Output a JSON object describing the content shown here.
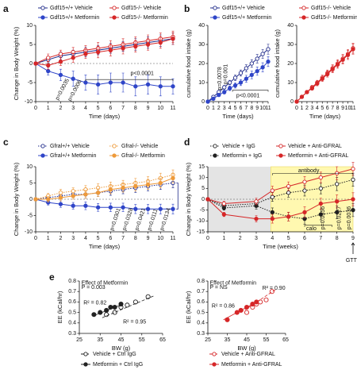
{
  "chart_data": [
    {
      "type": "line",
      "panel": "a",
      "x_label": "Time (days)",
      "y_label": "Change in Body Weight (%)",
      "x": [
        0,
        1,
        2,
        3,
        4,
        5,
        6,
        7,
        8,
        9,
        10,
        11
      ],
      "xlim": [
        0,
        11
      ],
      "xticks": [
        0,
        1,
        2,
        3,
        4,
        5,
        6,
        7,
        8,
        9,
        10,
        11
      ],
      "ylim": [
        -10,
        10
      ],
      "yticks": [
        -10,
        -5,
        0,
        5,
        10
      ],
      "zero_line": true,
      "series": [
        {
          "name": "Gdf15+/+ Vehicle",
          "color": "#1f2a8a",
          "marker": "open",
          "line_style": "solid",
          "values": [
            0,
            1,
            2,
            2.5,
            3,
            3.5,
            4,
            4.5,
            5,
            5.5,
            6,
            6.5
          ],
          "errors": [
            0,
            0.8,
            1,
            1,
            1.2,
            1.2,
            1.3,
            1.3,
            1.5,
            1.5,
            1.5,
            1.5
          ]
        },
        {
          "name": "Gdf15+/+ Metformin",
          "color": "#2f45c8",
          "marker": "filled",
          "line_style": "solid",
          "values": [
            0,
            -2,
            -3,
            -4,
            -5,
            -5.5,
            -5,
            -5,
            -6,
            -5.5,
            -6,
            -6
          ],
          "errors": [
            0,
            1,
            1.5,
            2,
            2,
            2.5,
            2.5,
            2.5,
            2.5,
            2.5,
            2.5,
            2
          ]
        },
        {
          "name": "Gdf15-/- Vehicle",
          "color": "#d62728",
          "marker": "open",
          "line_style": "solid",
          "values": [
            0,
            1.5,
            2.5,
            3,
            3.5,
            4,
            4.5,
            5,
            5.5,
            6,
            6.5,
            7
          ],
          "errors": [
            0,
            1,
            1,
            1.2,
            1.2,
            1.5,
            1.5,
            1.5,
            1.5,
            1.5,
            1.5,
            1.5
          ]
        },
        {
          "name": "Gdf15-/- Metformin",
          "color": "#d62728",
          "marker": "filled",
          "line_style": "solid",
          "values": [
            0,
            -0.5,
            0.5,
            1.5,
            2.5,
            3,
            3.5,
            4,
            4.5,
            5,
            5.5,
            6.5
          ],
          "errors": [
            0,
            1,
            1,
            1.2,
            1.2,
            1.5,
            1.5,
            1.5,
            1.5,
            1.5,
            1.5,
            1.5
          ]
        }
      ],
      "annotations": [
        "p=0.0035",
        "p=0.0006",
        "p<0.0001"
      ]
    },
    {
      "type": "line",
      "panel": "b",
      "x_label": "Time (days)",
      "y_label": "cumulative food intake (g)",
      "x": [
        0,
        1,
        2,
        3,
        4,
        5,
        6,
        7,
        8,
        9,
        10,
        11
      ],
      "xlim": [
        0,
        11
      ],
      "xticks": [
        0,
        1,
        2,
        3,
        4,
        5,
        6,
        7,
        8,
        9,
        10,
        11
      ],
      "ylim": [
        0,
        40
      ],
      "yticks": [
        0,
        10,
        20,
        30,
        40
      ],
      "series": [
        {
          "name": "Gdf15+/+ Vehicle",
          "color": "#1f2a8a",
          "marker": "open",
          "line_style": "solid",
          "values": [
            0,
            2.5,
            5,
            7.5,
            10,
            12.5,
            15,
            17.5,
            20,
            22.5,
            25,
            27.5
          ],
          "errors": [
            0,
            0.5,
            0.8,
            1,
            1.2,
            1.4,
            1.6,
            1.8,
            2,
            2.2,
            2.4,
            2.6
          ]
        },
        {
          "name": "Gdf15+/+ Metformin",
          "color": "#2f45c8",
          "marker": "filled",
          "line_style": "solid",
          "values": [
            0,
            1.5,
            3.5,
            5,
            7,
            8.5,
            10,
            12,
            14,
            16,
            18,
            21
          ],
          "errors": [
            0,
            0.5,
            0.8,
            1,
            1.2,
            1.4,
            1.6,
            1.8,
            2,
            2.2,
            2.4,
            2.6
          ]
        }
      ],
      "annotations": [
        "p=0.0078",
        "p=0.001",
        "p<0.0001"
      ]
    },
    {
      "type": "line",
      "x_label": "Time (days)",
      "y_label": "cumulative food intake (g)",
      "x": [
        0,
        1,
        2,
        3,
        4,
        5,
        6,
        7,
        8,
        9,
        10,
        11
      ],
      "xlim": [
        0,
        11
      ],
      "xticks": [
        0,
        1,
        2,
        3,
        4,
        5,
        6,
        7,
        8,
        9,
        10,
        11
      ],
      "ylim": [
        0,
        40
      ],
      "yticks": [
        0,
        10,
        20,
        30,
        40
      ],
      "series": [
        {
          "name": "Gdf15-/- Vehicle",
          "color": "#d62728",
          "marker": "open",
          "line_style": "solid",
          "values": [
            0,
            2.5,
            5,
            7.5,
            10,
            12.5,
            15,
            17.5,
            20,
            22.5,
            25,
            28
          ],
          "errors": [
            0,
            0.5,
            0.8,
            1,
            1.2,
            1.4,
            1.6,
            1.8,
            2,
            2.2,
            2.4,
            2.6
          ]
        },
        {
          "name": "Gdf15-/- Metformin",
          "color": "#d62728",
          "marker": "filled",
          "line_style": "solid",
          "values": [
            0,
            2.5,
            5,
            7,
            9.5,
            12,
            14.5,
            17,
            19.5,
            22,
            24.5,
            27.5
          ],
          "errors": [
            0,
            0.5,
            0.8,
            1,
            1.2,
            1.4,
            1.6,
            1.8,
            2,
            2.2,
            2.4,
            2.6
          ]
        }
      ]
    },
    {
      "type": "line",
      "panel": "c",
      "x_label": "Time (days)",
      "y_label": "Change in Body Weight (%)",
      "x": [
        0,
        1,
        2,
        3,
        4,
        5,
        6,
        7,
        8,
        9,
        10,
        11
      ],
      "xlim": [
        0,
        11
      ],
      "xticks": [
        0,
        1,
        2,
        3,
        4,
        5,
        6,
        7,
        8,
        9,
        10,
        11
      ],
      "ylim": [
        -10,
        10
      ],
      "yticks": [
        -10,
        -5,
        0,
        5,
        10
      ],
      "zero_line": true,
      "series": [
        {
          "name": "Gfral+/+ Vehicle",
          "color": "#1f2a8a",
          "marker": "open",
          "line_style": "dotted",
          "values": [
            0,
            0.5,
            1,
            1.5,
            1.5,
            2,
            2.5,
            3,
            3.5,
            4,
            4.5,
            5
          ],
          "errors": [
            0,
            0.8,
            1,
            1,
            1.2,
            1.2,
            1.3,
            1.3,
            1.4,
            1.4,
            1.5,
            1.5
          ]
        },
        {
          "name": "Gfral+/+ Metformin",
          "color": "#2f45c8",
          "marker": "filled",
          "line_style": "solid",
          "values": [
            0,
            -1,
            -1.5,
            -2,
            -2,
            -2.5,
            -2.5,
            -2.5,
            -3,
            -3,
            -3,
            -3
          ],
          "errors": [
            0,
            0.8,
            1,
            1,
            1.2,
            1.2,
            1.3,
            1.3,
            1.4,
            1.4,
            1.5,
            1.5
          ]
        },
        {
          "name": "Gfral-/- Vehicle",
          "color": "#ee9a3a",
          "marker": "open",
          "line_style": "dotted",
          "values": [
            0,
            1,
            2,
            2.5,
            3,
            3.5,
            4,
            4.5,
            5,
            5.5,
            6.5,
            7.5
          ],
          "errors": [
            0,
            0.8,
            1,
            1,
            1.2,
            1.2,
            1.3,
            1.3,
            1.4,
            1.4,
            1.5,
            1.5
          ]
        },
        {
          "name": "Gfral-/- Metformin",
          "color": "#ee9a3a",
          "marker": "filled",
          "line_style": "solid",
          "values": [
            0,
            0,
            0.5,
            1,
            1.5,
            2,
            3,
            3.5,
            4,
            4.5,
            5,
            6.5
          ],
          "errors": [
            0,
            0.8,
            1,
            1,
            1.2,
            1.2,
            1.3,
            1.3,
            1.4,
            1.4,
            1.5,
            1.5
          ]
        }
      ],
      "annotations": [
        "p=0.0301",
        "p=0.0328",
        "p=0.0421",
        "p=0.0111",
        "p=0.0134"
      ]
    },
    {
      "type": "line",
      "panel": "d",
      "x_label": "Time (weeks)",
      "y_label": "Change in Body Weight (%)",
      "x": [
        0,
        1,
        3,
        4,
        5,
        6,
        7,
        8,
        9
      ],
      "xlim": [
        0,
        9
      ],
      "xticks": [
        0,
        1,
        2,
        3,
        4,
        5,
        6,
        7,
        8,
        9
      ],
      "ylim": [
        -15,
        15
      ],
      "yticks": [
        -15,
        -10,
        -5,
        0,
        5,
        10,
        15
      ],
      "zero_line": true,
      "series": [
        {
          "name": "Vehicle + IgG",
          "color": "#222222",
          "marker": "open",
          "line_style": "dotted",
          "values": [
            0,
            -3,
            -2,
            1,
            3,
            4,
            5,
            7,
            9
          ],
          "errors": [
            0,
            1,
            1.5,
            2,
            2,
            2.5,
            2.5,
            3,
            3
          ]
        },
        {
          "name": "Metformin + IgG",
          "color": "#222222",
          "marker": "filled",
          "line_style": "dotted",
          "values": [
            0,
            -4,
            -3,
            -6,
            -8,
            -9,
            -7,
            -6,
            -5
          ],
          "errors": [
            0,
            1,
            1.5,
            2,
            2,
            2.5,
            2.5,
            3,
            3
          ]
        },
        {
          "name": "Vehicle + Anti-GFRAL",
          "color": "#d62728",
          "marker": "open",
          "line_style": "solid",
          "values": [
            0,
            -2,
            -1,
            4,
            6,
            8,
            10,
            12,
            14
          ],
          "errors": [
            0,
            1,
            1.5,
            2,
            2,
            2.5,
            2.5,
            3,
            3
          ]
        },
        {
          "name": "Metformin + Anti-GFRAL",
          "color": "#d62728",
          "marker": "filled",
          "line_style": "solid",
          "values": [
            0,
            -7,
            -9,
            -9,
            -8,
            -6,
            -2,
            -1,
            0
          ],
          "errors": [
            0,
            1,
            1.5,
            2,
            2,
            2.5,
            2.5,
            3,
            3
          ]
        }
      ],
      "annotations": [
        "antibody",
        "calo",
        "GTT",
        "p=0.0356",
        "p=0.0227",
        "p=0.0036"
      ]
    },
    {
      "type": "scatter",
      "panel": "e",
      "x_label": "BW (g)",
      "y_label": "EE (kCal/hr)",
      "xlim": [
        25,
        65
      ],
      "xticks": [
        25,
        35,
        45,
        55,
        65
      ],
      "ylim": [
        0.3,
        0.8
      ],
      "yticks": [
        0.3,
        0.4,
        0.5,
        0.6,
        0.7,
        0.8
      ],
      "series": [
        {
          "name": "Vehicle + Ctrl IgG",
          "color": "#222222",
          "marker": "open",
          "line_style": "dashed",
          "x": [
            38,
            42,
            45,
            48,
            52,
            58
          ],
          "values": [
            0.48,
            0.5,
            0.55,
            0.57,
            0.6,
            0.65
          ]
        },
        {
          "name": "Metformin + Ctrl IgG",
          "color": "#222222",
          "marker": "filled",
          "line_style": "solid",
          "x": [
            32,
            35,
            38,
            40,
            42,
            45
          ],
          "values": [
            0.48,
            0.5,
            0.52,
            0.55,
            0.55,
            0.58
          ]
        }
      ],
      "annotations": [
        "Effect of Metformin",
        "P = 0.003",
        "R² = 0.82",
        "R² = 0.95"
      ]
    },
    {
      "type": "scatter",
      "x_label": "BW (g)",
      "y_label": "EE (kCal/hr)",
      "xlim": [
        25,
        65
      ],
      "xticks": [
        25,
        35,
        45,
        55,
        65
      ],
      "ylim": [
        0.3,
        0.8
      ],
      "yticks": [
        0.3,
        0.4,
        0.5,
        0.6,
        0.7,
        0.8
      ],
      "series": [
        {
          "name": "Vehicle + Anti-GFRAL",
          "color": "#d62728",
          "marker": "open",
          "line_style": "dashed",
          "x": [
            45,
            48,
            50,
            52,
            55,
            58
          ],
          "values": [
            0.5,
            0.55,
            0.58,
            0.6,
            0.62,
            0.7
          ]
        },
        {
          "name": "Metformin + Anti-GFRAL",
          "color": "#d62728",
          "marker": "filled",
          "line_style": "solid",
          "x": [
            35,
            40,
            42,
            45,
            48,
            50
          ],
          "values": [
            0.43,
            0.5,
            0.52,
            0.55,
            0.58,
            0.6
          ]
        }
      ],
      "annotations": [
        "Effect of Metformin",
        "P = NS",
        "R² = 0.86",
        "R² = 0.90"
      ]
    }
  ]
}
